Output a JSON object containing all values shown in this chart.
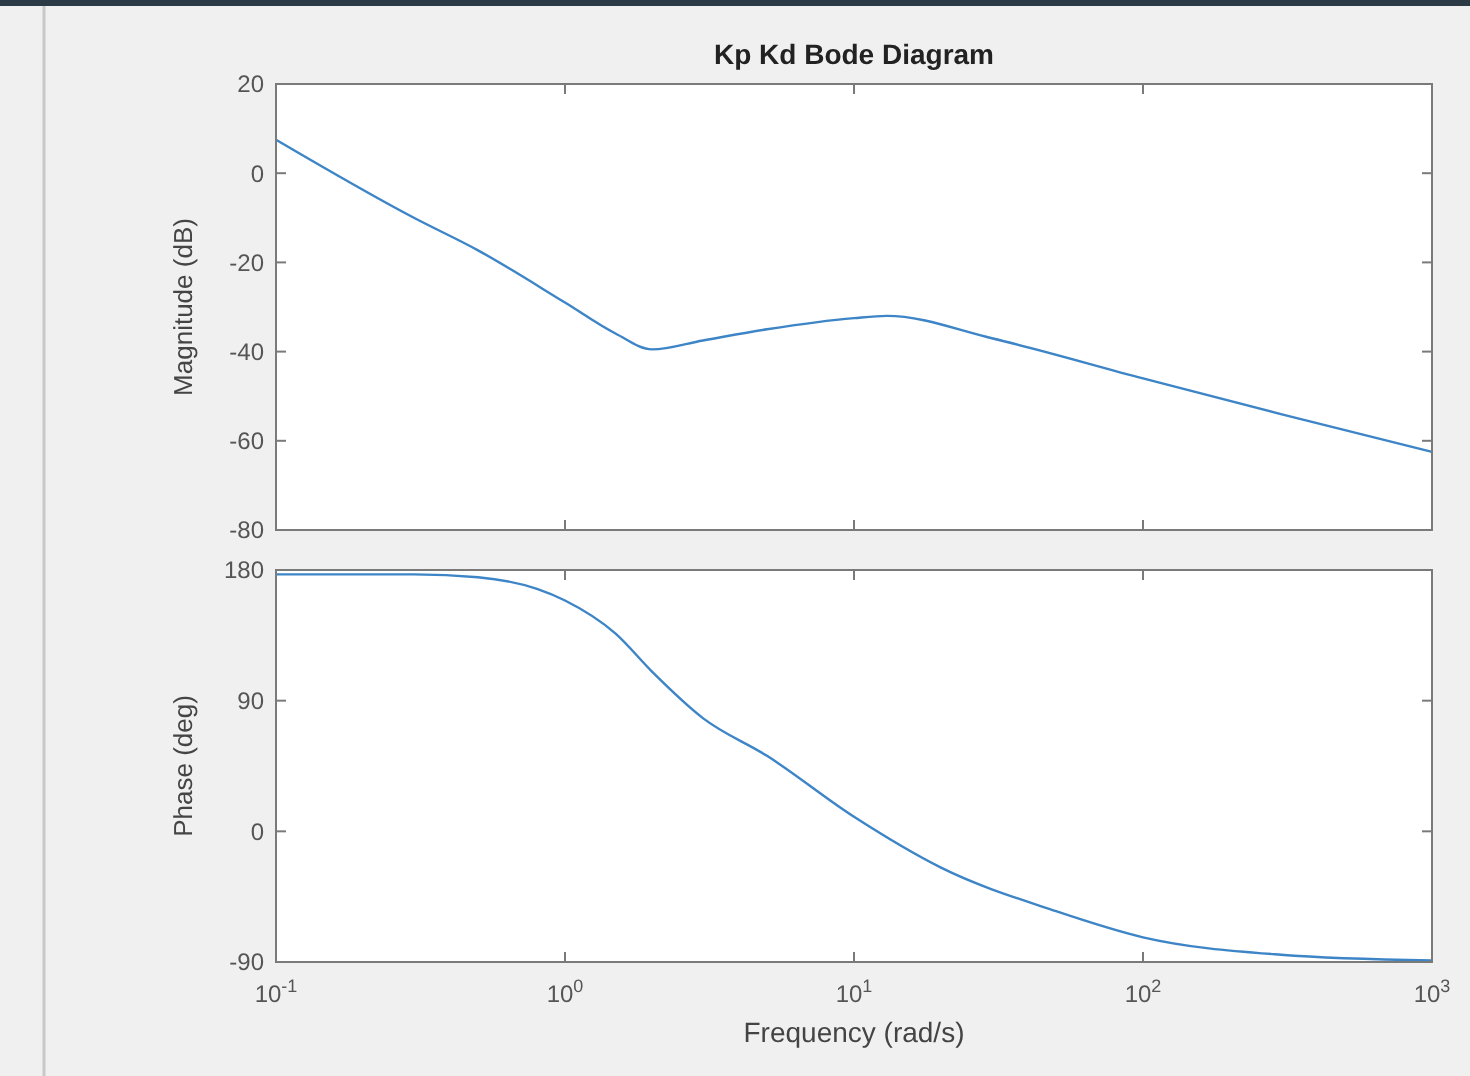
{
  "chart_data": [
    {
      "type": "line",
      "title": "Kp Kd Bode Diagram",
      "ylabel": "Magnitude (dB)",
      "x": [
        0.1,
        0.3,
        0.5,
        1,
        1.5,
        2,
        3,
        5,
        10,
        13,
        30,
        100,
        300,
        1000
      ],
      "series": [
        {
          "color": "#3d85c6",
          "values": [
            7.5,
            -10,
            -17.3,
            -29,
            -36,
            -39.5,
            -37.5,
            -35,
            -32.5,
            -32,
            -37,
            -46,
            -54,
            -62.5
          ]
        }
      ],
      "xlim": [
        0.1,
        1000
      ],
      "xticks": [
        {
          "value": 0.1,
          "label": null
        },
        {
          "value": 1,
          "label": null
        },
        {
          "value": 10,
          "label": null
        },
        {
          "value": 100,
          "label": null
        },
        {
          "value": 1000,
          "label": null
        }
      ],
      "ylim": [
        -80,
        20
      ],
      "yticks": [
        -80,
        -60,
        -40,
        -20,
        0,
        20
      ],
      "log": "x",
      "grid": false,
      "tick_labels": "y"
    },
    {
      "type": "line",
      "ylabel": "Phase (deg)",
      "xlabel": "Frequency  (rad/s)",
      "x": [
        0.1,
        0.3,
        0.5,
        0.8,
        1,
        1.5,
        2,
        3,
        5,
        10,
        20,
        50,
        100,
        300,
        1000
      ],
      "series": [
        {
          "color": "#3d85c6",
          "values": [
            177,
            177,
            175,
            167,
            159,
            136,
            110,
            78,
            52,
            10,
            -25,
            -55,
            -73,
            -85,
            -89
          ]
        }
      ],
      "xlim": [
        0.1,
        1000
      ],
      "xticks": [
        {
          "value": 0.1,
          "label": "10$^{-1}$"
        },
        {
          "value": 1,
          "label": "10$^{0}$"
        },
        {
          "value": 10,
          "label": "10$^{1}$"
        },
        {
          "value": 100,
          "label": "10$^{2}$"
        },
        {
          "value": 1000,
          "label": "10$^{3}$"
        }
      ],
      "ylim": [
        -90,
        180
      ],
      "yticks": [
        -90,
        0,
        90,
        180
      ],
      "log": "x",
      "grid": false
    }
  ]
}
